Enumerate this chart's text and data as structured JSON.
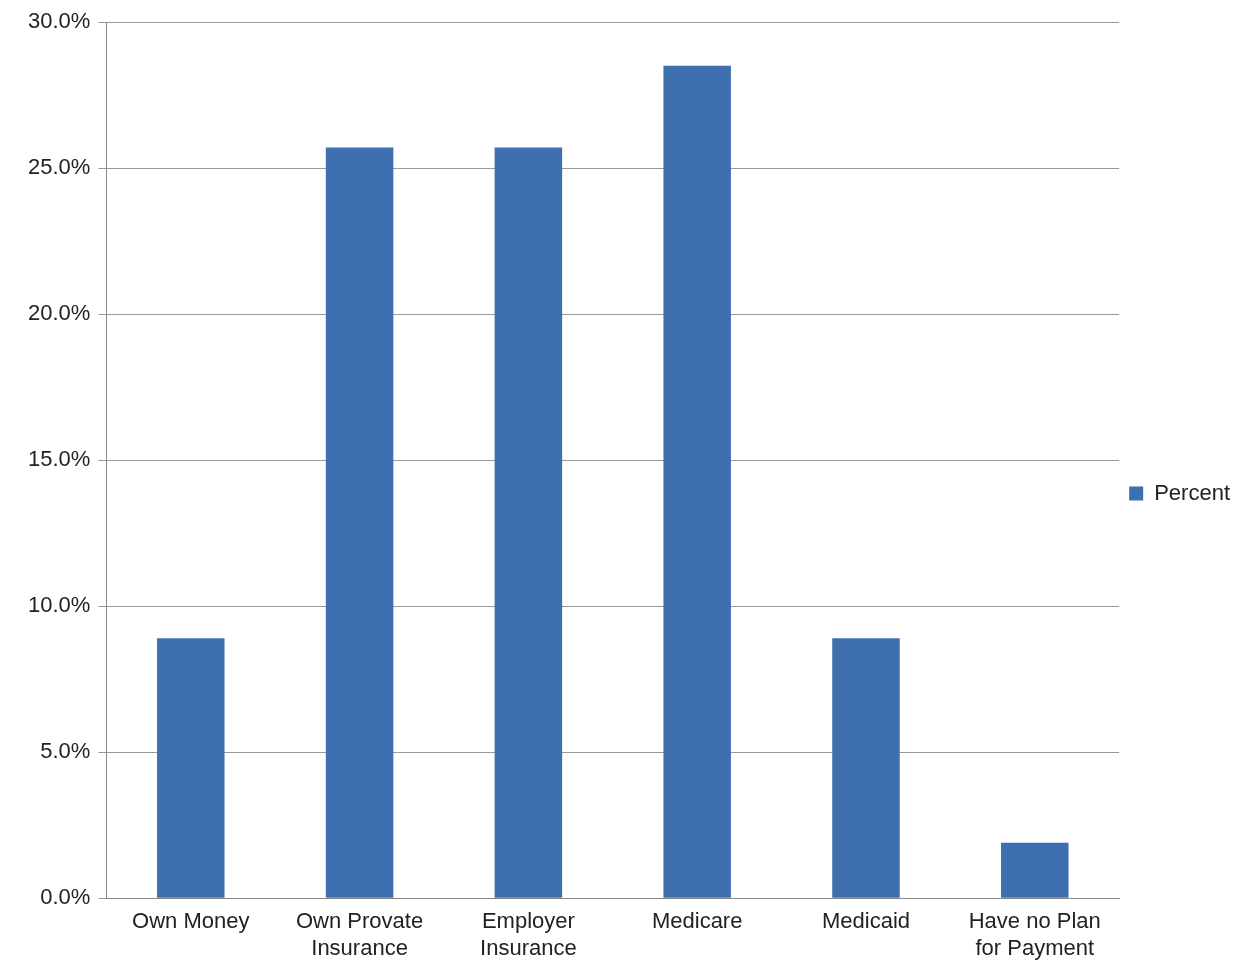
{
  "chart_data": {
    "type": "bar",
    "categories": [
      "Own Money",
      "Own Provate Insurance",
      "Employer Insurance",
      "Medicare",
      "Medicaid",
      "Have no Plan for Payment"
    ],
    "series": [
      {
        "name": "Percent",
        "color": "#3e70b0",
        "values": [
          8.9,
          25.7,
          25.7,
          28.5,
          8.9,
          1.9
        ]
      }
    ],
    "ylim": [
      0,
      30
    ],
    "yticks": [
      {
        "value": 0,
        "label": "0.0%"
      },
      {
        "value": 5,
        "label": "5.0%"
      },
      {
        "value": 10,
        "label": "10.0%"
      },
      {
        "value": 15,
        "label": "15.0%"
      },
      {
        "value": 20,
        "label": "20.0%"
      },
      {
        "value": 25,
        "label": "25.0%"
      },
      {
        "value": 30,
        "label": "30.0%"
      }
    ],
    "grid": "y",
    "legend": "right"
  }
}
